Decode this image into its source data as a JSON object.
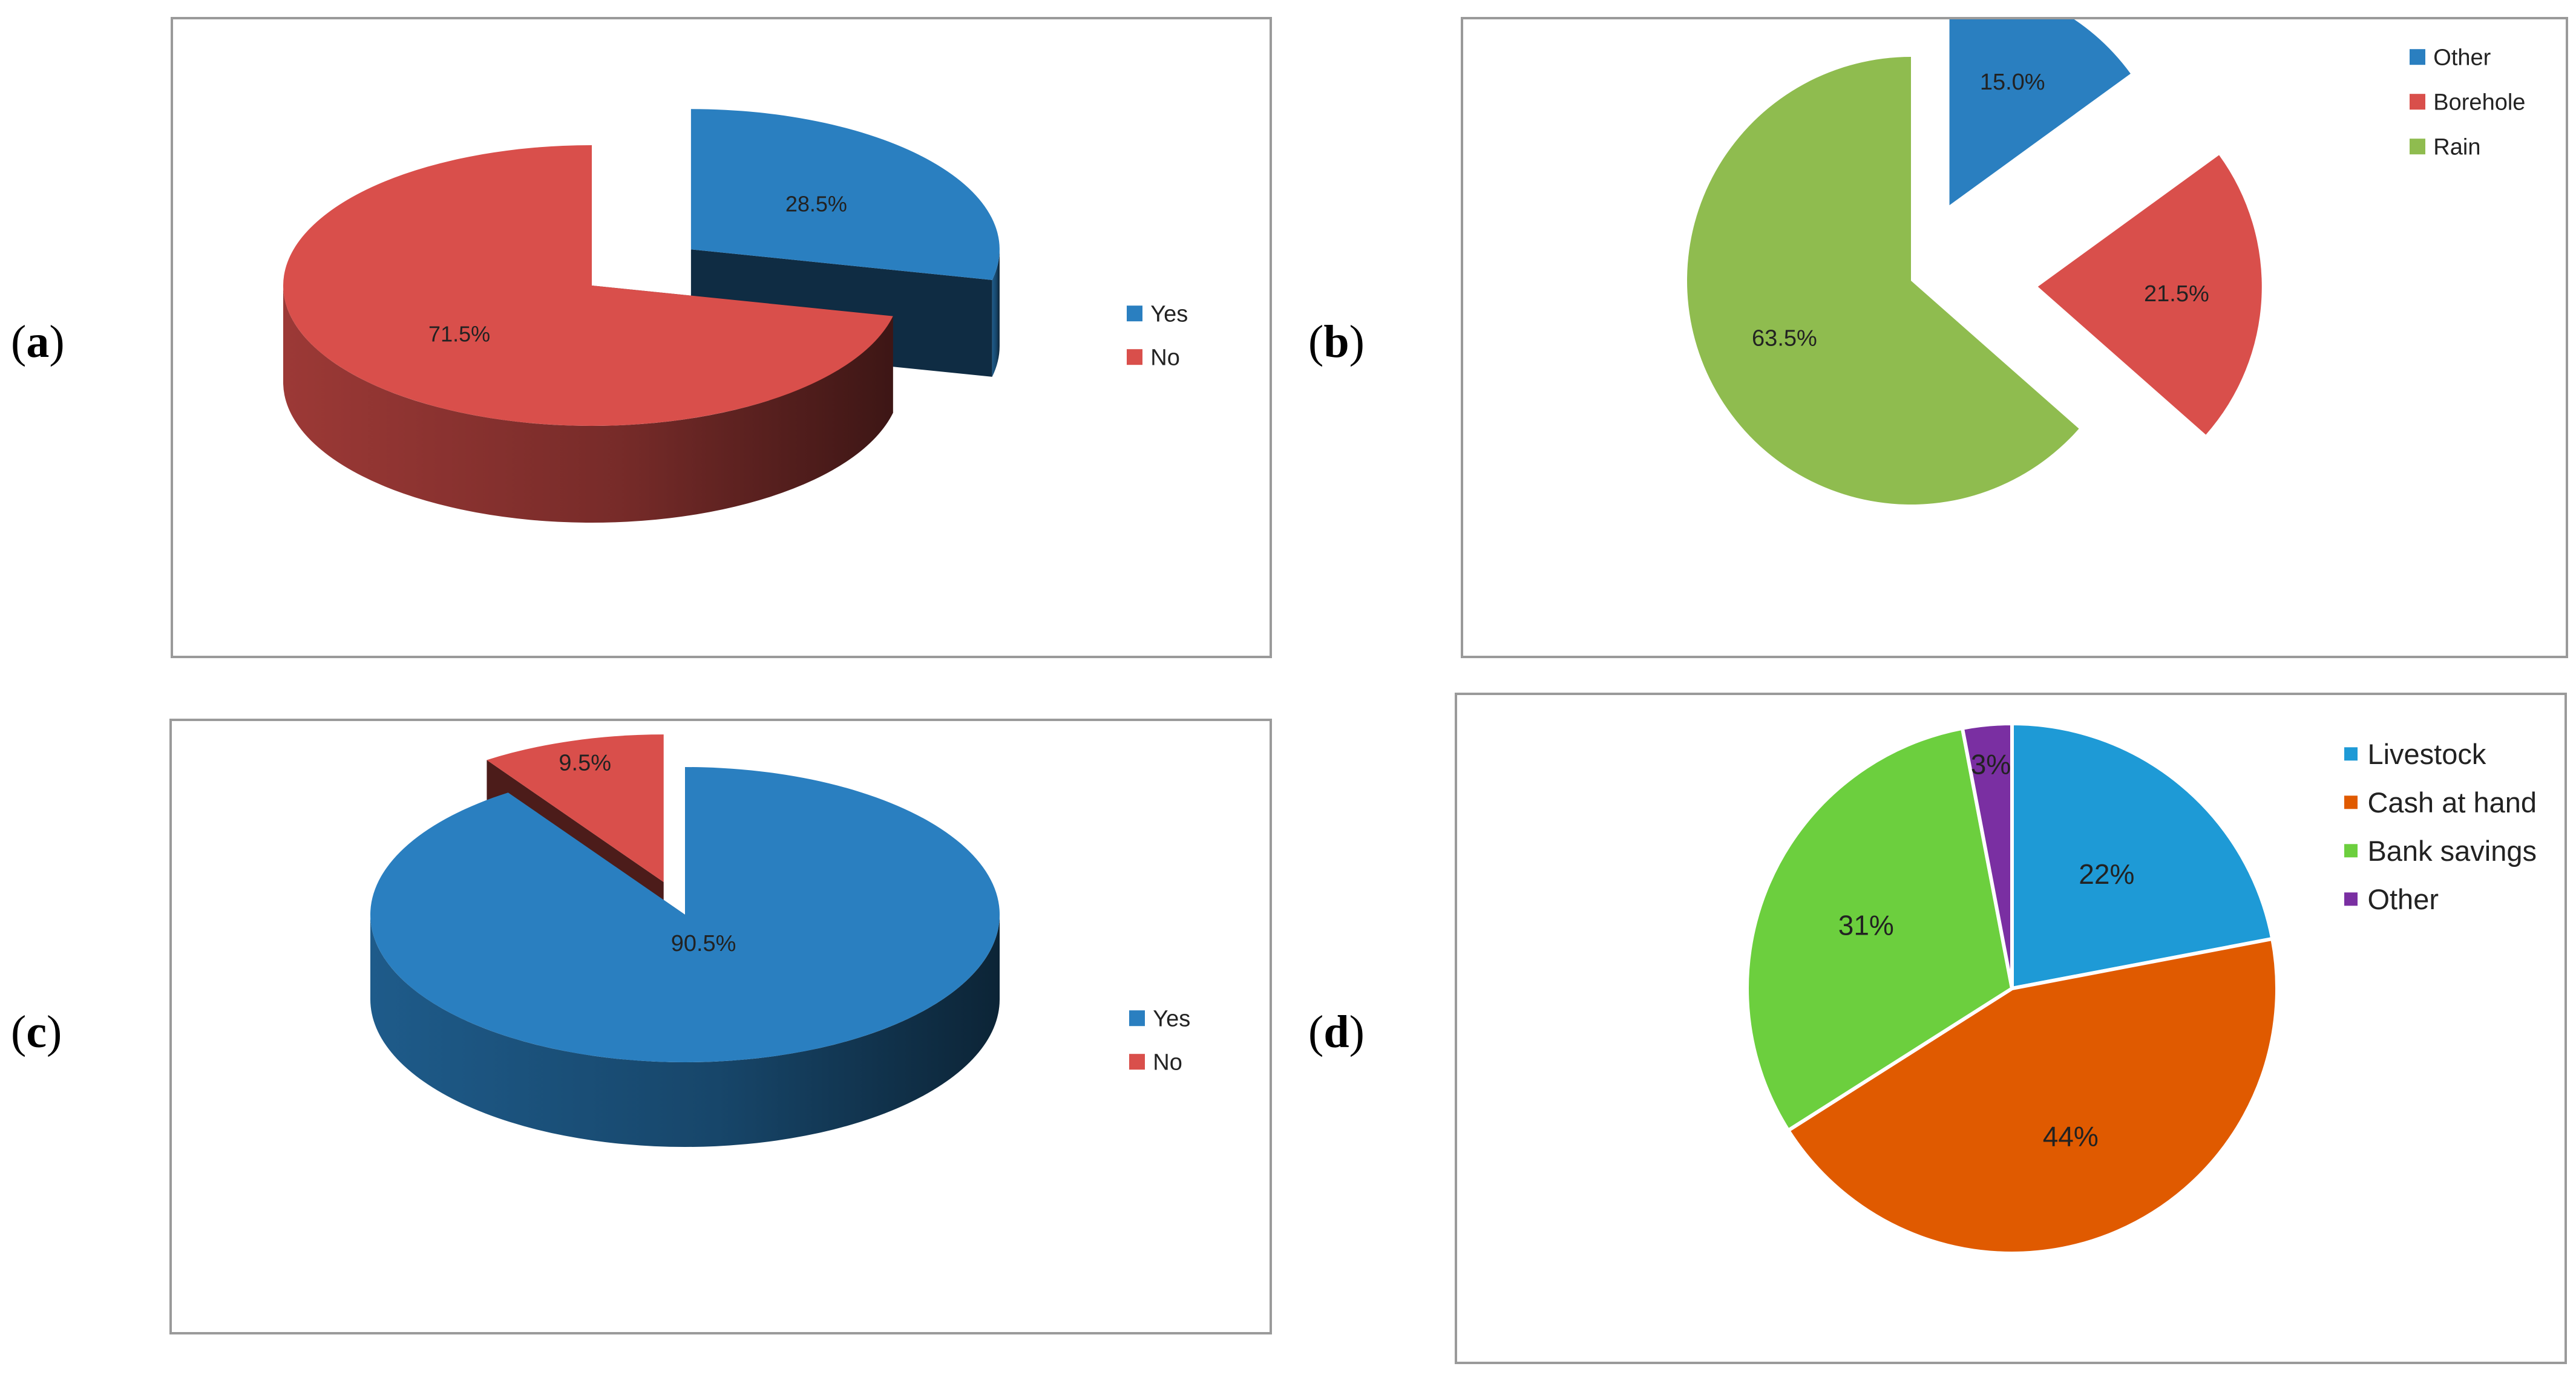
{
  "panels": [
    {
      "label": "a",
      "paren_open": "(",
      "paren_close": ")"
    },
    {
      "label": "b",
      "paren_open": "(",
      "paren_close": ")"
    },
    {
      "label": "c",
      "paren_open": "(",
      "paren_close": ")"
    },
    {
      "label": "d",
      "paren_open": "(",
      "paren_close": ")"
    }
  ],
  "chart_data": [
    {
      "type": "pie",
      "panel": "a",
      "style": "3d-exploded",
      "slices": [
        {
          "name": "Yes",
          "value": 28.5,
          "label": "28.5%",
          "color": "#2a7fc0",
          "exploded": true
        },
        {
          "name": "No",
          "value": 71.5,
          "label": "71.5%",
          "color": "#d94f4b",
          "exploded": false
        }
      ],
      "legend": [
        "Yes",
        "No"
      ],
      "legend_position": "right"
    },
    {
      "type": "pie",
      "panel": "b",
      "style": "2d-exploded",
      "slices": [
        {
          "name": "Other",
          "value": 15.0,
          "label": "15.0%",
          "color": "#2a7fc0"
        },
        {
          "name": "Borehole",
          "value": 21.5,
          "label": "21.5%",
          "color": "#d94f4b"
        },
        {
          "name": "Rain",
          "value": 63.5,
          "label": "63.5%",
          "color": "#8fbc4f"
        }
      ],
      "legend": [
        "Other",
        "Borehole",
        "Rain"
      ],
      "legend_position": "top-right"
    },
    {
      "type": "pie",
      "panel": "c",
      "style": "3d-exploded",
      "slices": [
        {
          "name": "Yes",
          "value": 90.5,
          "label": "90.5%",
          "color": "#2a7fc0",
          "exploded": false
        },
        {
          "name": "No",
          "value": 9.5,
          "label": "9.5%",
          "color": "#d94f4b",
          "exploded": true
        }
      ],
      "legend": [
        "Yes",
        "No"
      ],
      "legend_position": "right"
    },
    {
      "type": "pie",
      "panel": "d",
      "style": "2d",
      "slices": [
        {
          "name": "Livestock",
          "value": 22,
          "label": "22%",
          "color": "#1e9ad6"
        },
        {
          "name": "Cash at hand",
          "value": 44,
          "label": "44%",
          "color": "#e05a00"
        },
        {
          "name": "Bank savings",
          "value": 31,
          "label": "31%",
          "color": "#6ccf3e"
        },
        {
          "name": "Other",
          "value": 3,
          "label": "3%",
          "color": "#7a2fa2"
        }
      ],
      "legend": [
        "Livestock",
        "Cash at hand",
        "Bank savings",
        "Other"
      ],
      "legend_position": "top-right"
    }
  ]
}
